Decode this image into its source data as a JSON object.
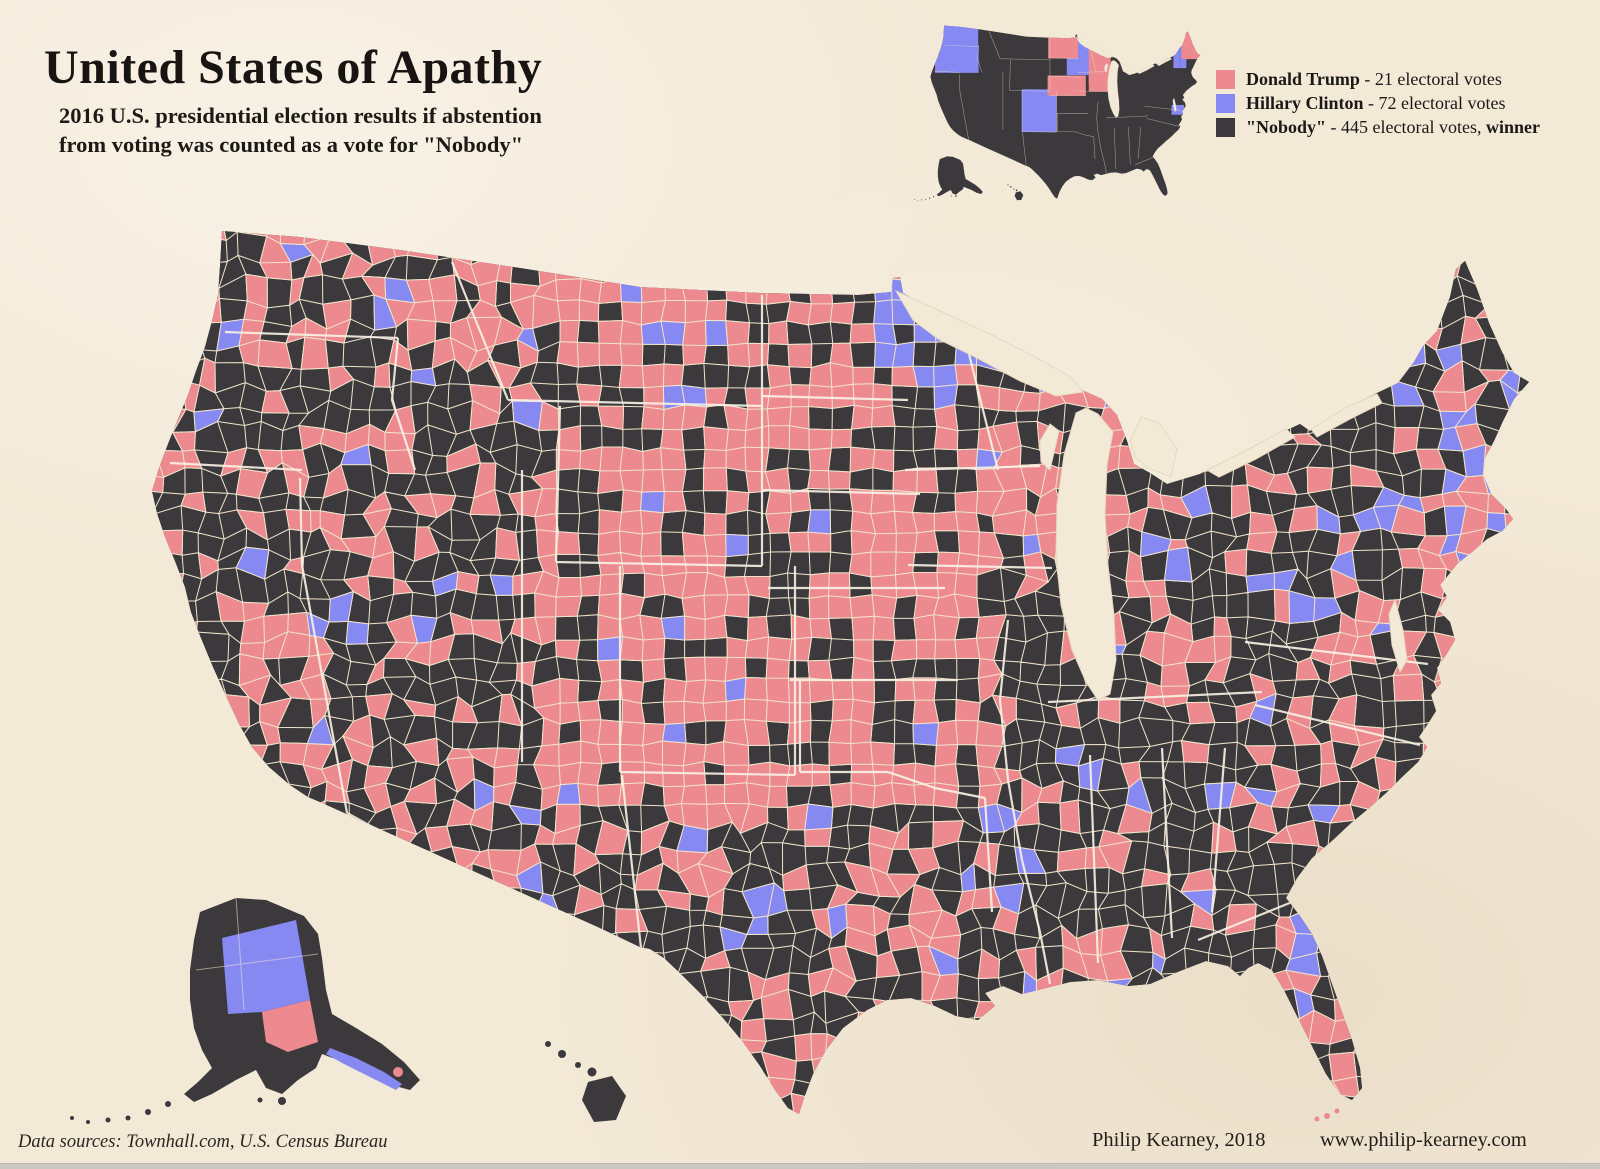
{
  "title": "United States of Apathy",
  "subtitle": {
    "line1": "2016 U.S. presidential election results if abstention",
    "line2": "from voting was counted as a vote for \"Nobody\""
  },
  "legend": {
    "items": [
      {
        "name": "Donald Trump",
        "rest": " - 21 electoral votes",
        "rest_bold": "",
        "color": "#ED8A8F"
      },
      {
        "name": "Hillary Clinton",
        "rest": " - 72 electoral votes",
        "rest_bold": "",
        "color": "#8789F3"
      },
      {
        "name": "\"Nobody\"",
        "rest": " - 445 electoral votes, ",
        "rest_bold": "winner",
        "color": "#3B393B"
      }
    ]
  },
  "footer": {
    "data_sources": "Data sources:  Townhall.com, U.S. Census Bureau",
    "author": "Philip Kearney, 2018",
    "website": "www.philip-kearney.com"
  },
  "map": {
    "colors": {
      "trump_pink": "#ED8A8F",
      "clinton_blue": "#8789F3",
      "nobody_dark": "#3B393B",
      "county_border": "#F0E4CC",
      "state_border": "#F9F2E4",
      "background": "#F3E9D7"
    },
    "inset": {
      "clinton_states": [
        "WA",
        "OR",
        "CO",
        "MN",
        "VT",
        "NH",
        "MD"
      ],
      "trump_states": [
        "ND",
        "NE",
        "IA",
        "WI",
        "ME"
      ]
    }
  },
  "chart_data": {
    "type": "choropleth-map",
    "title": "United States of Apathy",
    "subtitle": "2016 U.S. presidential election results if abstention from voting was counted as a vote for \"Nobody\"",
    "series": [
      {
        "name": "Donald Trump",
        "electoral_votes": 21,
        "color": "#ED8A8F",
        "winner": false
      },
      {
        "name": "Hillary Clinton",
        "electoral_votes": 72,
        "color": "#8789F3",
        "winner": false
      },
      {
        "name": "\"Nobody\"",
        "electoral_votes": 445,
        "color": "#3B393B",
        "winner": true
      }
    ]
  }
}
